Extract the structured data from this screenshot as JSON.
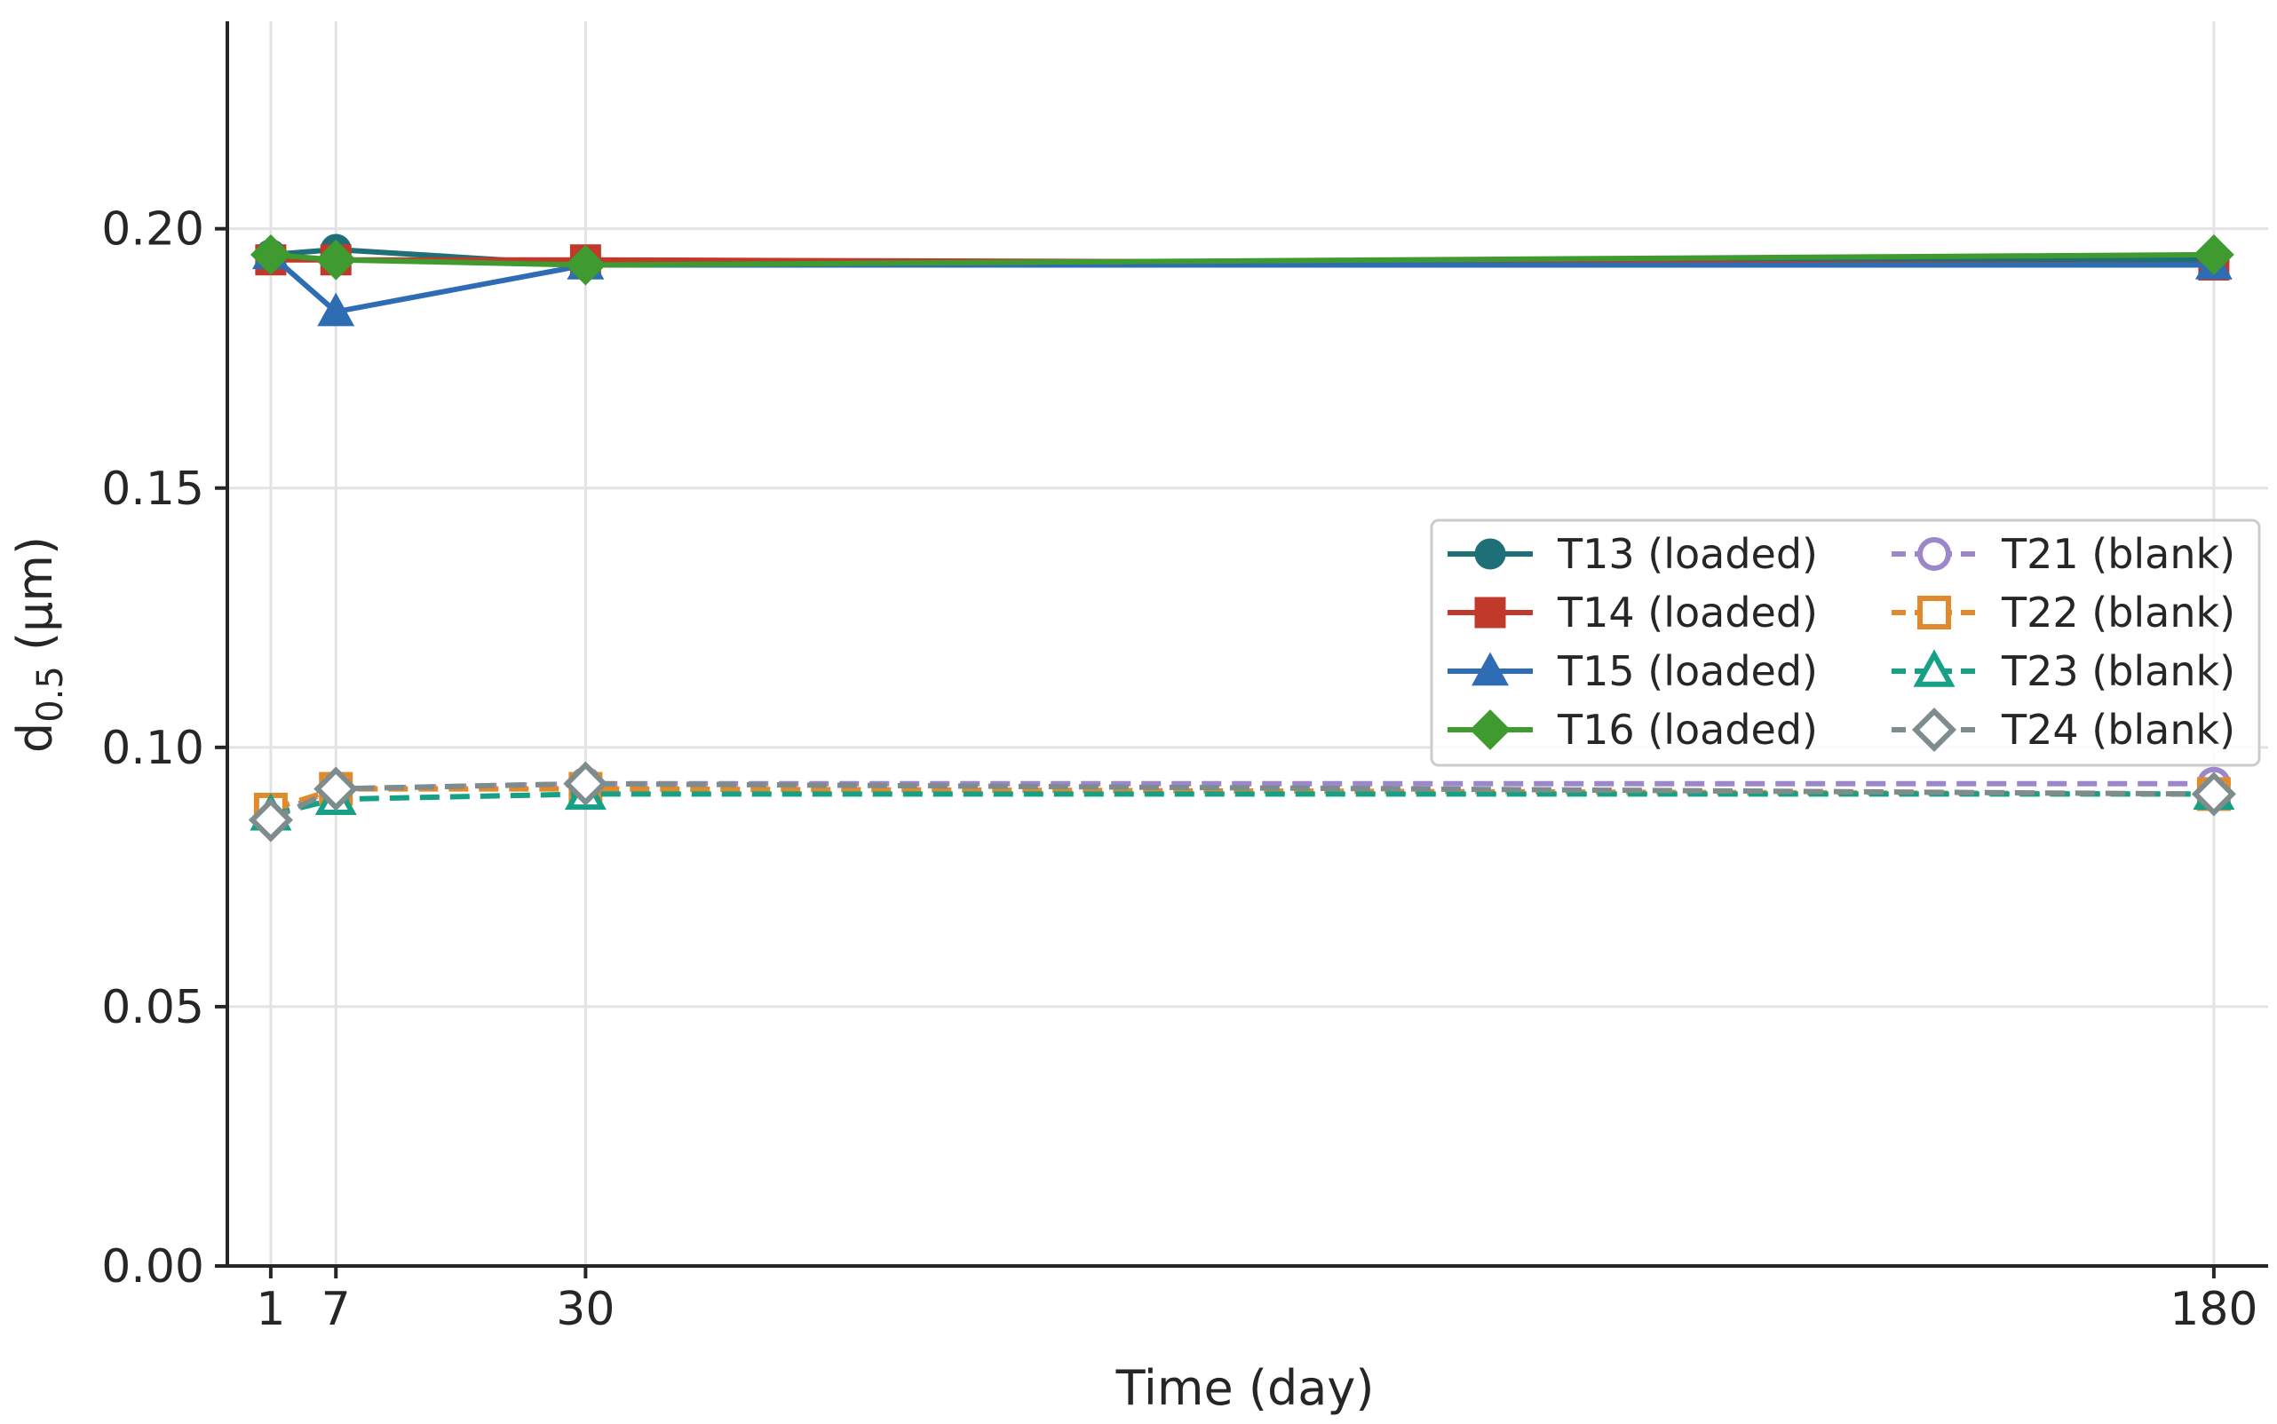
{
  "chart_data": {
    "type": "line",
    "xlabel": "Time (day)",
    "ylabel_main": "d",
    "ylabel_sub": "0.5",
    "ylabel_unit": " (µm)",
    "xlim": [
      -3,
      185
    ],
    "ylim": [
      0,
      0.24
    ],
    "xticks": [
      1,
      7,
      30,
      180
    ],
    "xtick_labels": [
      "1",
      "7",
      "30",
      "180"
    ],
    "yticks": [
      0,
      0.05,
      0.1,
      0.15,
      0.2
    ],
    "ytick_labels": [
      "0.00",
      "0.05",
      "0.10",
      "0.15",
      "0.20"
    ],
    "grid": true,
    "legend_position": "center-right",
    "legend_columns": 2,
    "x": [
      1,
      7,
      30,
      180
    ],
    "series": [
      {
        "name": "T13 (loaded)",
        "values": [
          0.195,
          0.196,
          0.193,
          0.194
        ],
        "color": "#1f6f78",
        "marker": "circle",
        "filled": true,
        "dashed": false
      },
      {
        "name": "T14 (loaded)",
        "values": [
          0.194,
          0.194,
          0.194,
          0.193
        ],
        "color": "#c0392b",
        "marker": "square",
        "filled": true,
        "dashed": false
      },
      {
        "name": "T15 (loaded)",
        "values": [
          0.195,
          0.184,
          0.193,
          0.193
        ],
        "color": "#2e6db4",
        "marker": "triangle",
        "filled": true,
        "dashed": false
      },
      {
        "name": "T16 (loaded)",
        "values": [
          0.195,
          0.194,
          0.193,
          0.195
        ],
        "color": "#3f9b2f",
        "marker": "diamond",
        "filled": true,
        "dashed": false
      },
      {
        "name": "T21 (blank)",
        "values": [
          0.087,
          0.092,
          0.093,
          0.093
        ],
        "color": "#9b87c9",
        "marker": "circle",
        "filled": false,
        "dashed": true
      },
      {
        "name": "T22 (blank)",
        "values": [
          0.088,
          0.092,
          0.092,
          0.091
        ],
        "color": "#e08a2c",
        "marker": "square",
        "filled": false,
        "dashed": true
      },
      {
        "name": "T23 (blank)",
        "values": [
          0.087,
          0.09,
          0.091,
          0.091
        ],
        "color": "#16a085",
        "marker": "triangle",
        "filled": false,
        "dashed": true
      },
      {
        "name": "T24 (blank)",
        "values": [
          0.086,
          0.092,
          0.093,
          0.091
        ],
        "color": "#7f8c8d",
        "marker": "diamond",
        "filled": false,
        "dashed": true
      }
    ]
  }
}
